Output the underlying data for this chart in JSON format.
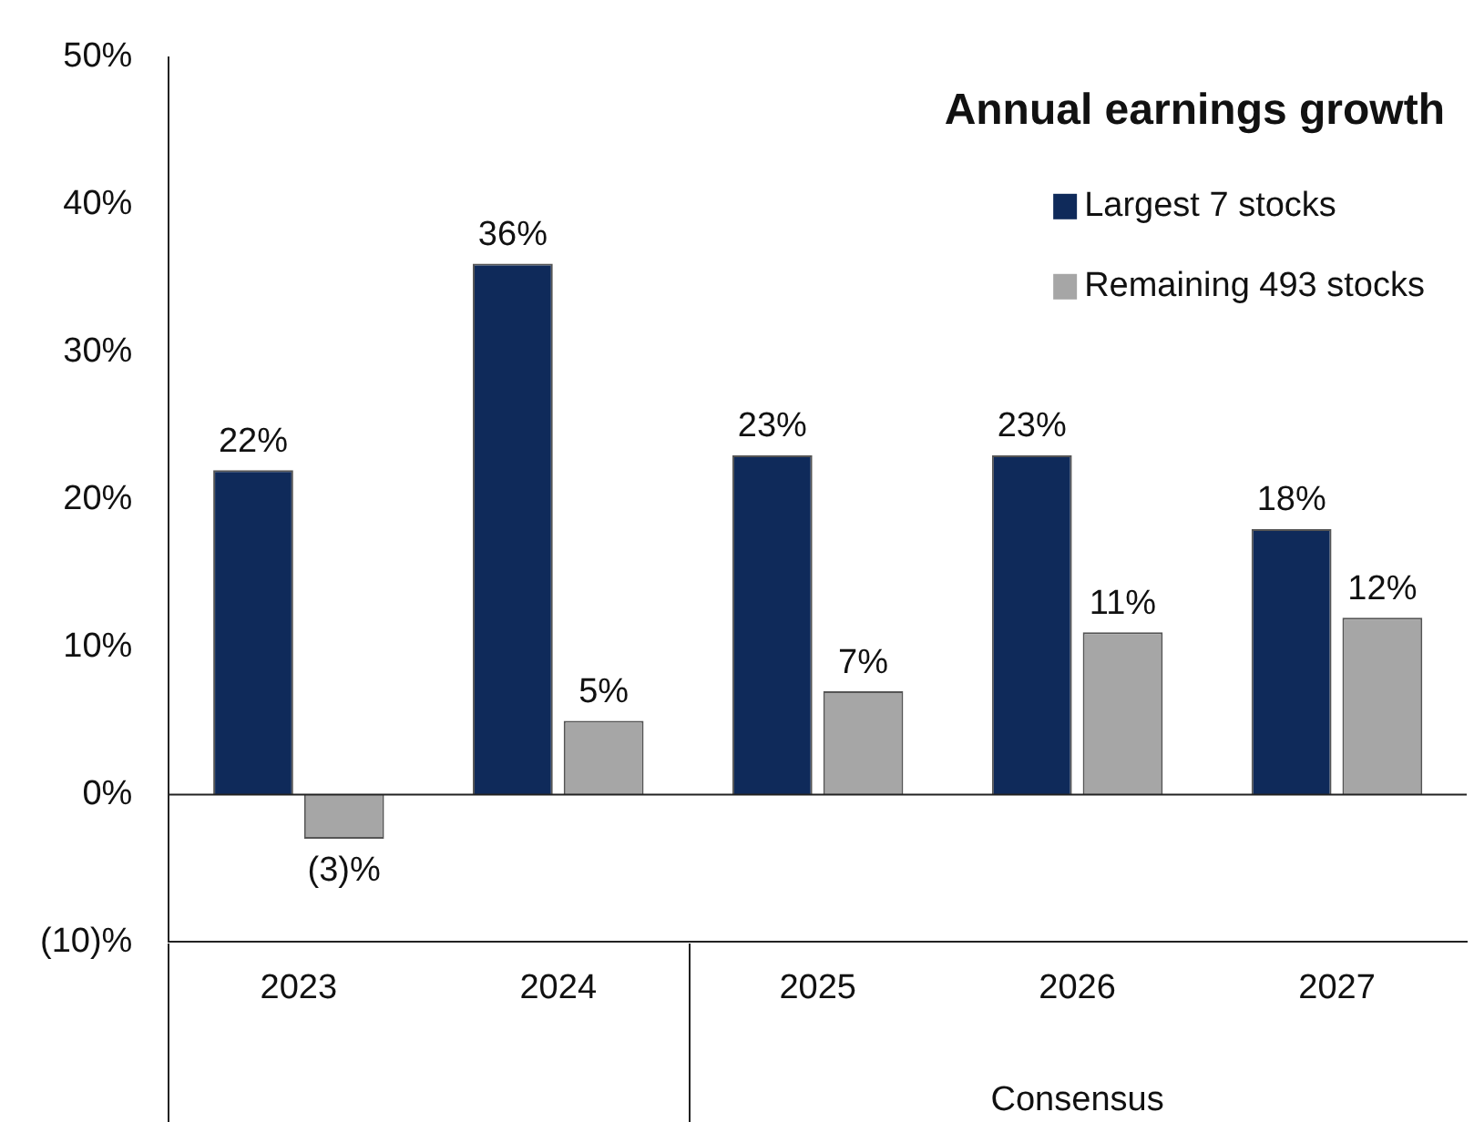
{
  "chart_data": {
    "type": "bar",
    "title": "Annual earnings growth",
    "categories": [
      "2023",
      "2024",
      "2025",
      "2026",
      "2027"
    ],
    "series": [
      {
        "name": "Largest 7 stocks",
        "color": "#0f2a5a",
        "values": [
          22,
          36,
          23,
          23,
          18
        ],
        "value_labels": [
          "22%",
          "36%",
          "23%",
          "23%",
          "18%"
        ]
      },
      {
        "name": "Remaining 493 stocks",
        "color": "#a6a6a6",
        "values": [
          -3,
          5,
          7,
          11,
          12
        ],
        "value_labels": [
          "(3)%",
          "5%",
          "7%",
          "11%",
          "12%"
        ]
      }
    ],
    "ylim": [
      -10,
      50
    ],
    "yticks": [
      {
        "value": -10,
        "label": "(10)%"
      },
      {
        "value": 0,
        "label": "0%"
      },
      {
        "value": 10,
        "label": "10%"
      },
      {
        "value": 20,
        "label": "20%"
      },
      {
        "value": 30,
        "label": "30%"
      },
      {
        "value": 40,
        "label": "40%"
      },
      {
        "value": 50,
        "label": "50%"
      }
    ],
    "annotations": [
      "Consensus"
    ],
    "ref_lines": [
      {
        "axis": "y",
        "value": 0,
        "color": "#222222"
      }
    ],
    "grid": false,
    "legend": "top right"
  }
}
